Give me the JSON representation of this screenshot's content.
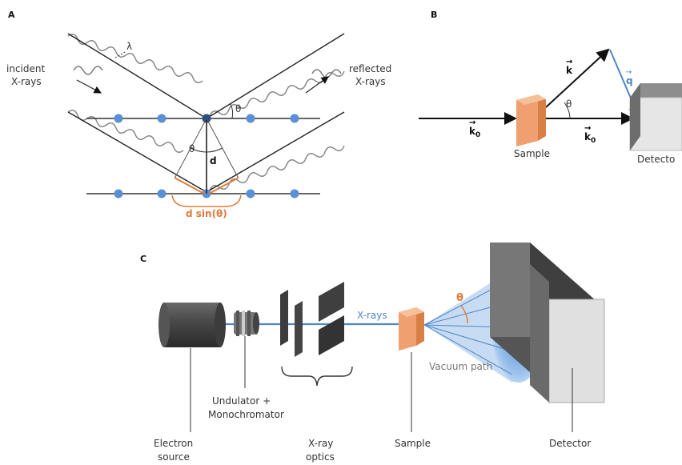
{
  "panels": {
    "a": {
      "panel_label": "A",
      "incident_label_line1": "incident",
      "incident_label_line2": "X-rays",
      "reflected_label_line1": "reflected",
      "reflected_label_line2": "X-rays",
      "wavelength_symbol": "λ",
      "theta_symbol": "θ",
      "spacing_symbol": "d",
      "path_difference": "d sin(θ)"
    },
    "b": {
      "panel_label": "B",
      "k_label": "k",
      "q_label": "q",
      "k0_label": "k",
      "k0_subscript": "0",
      "theta_symbol": "θ",
      "sample_label": "Sample",
      "detector_label": "Detecto"
    },
    "c": {
      "panel_label": "C",
      "theta_symbol": "θ",
      "xrays_label": "X-rays",
      "vacuum_label": "Vacuum path",
      "undulator_line1": "Undulator +",
      "undulator_line2": "Monochromator",
      "electron_line1": "Electron",
      "electron_line2": "source",
      "optics_line1": "X-ray",
      "optics_line2": "optics",
      "sample_label": "Sample",
      "detector_label": "Detector"
    }
  },
  "colors": {
    "atom_blue": "#5b8fd6",
    "beam_blue": "#4f86c6",
    "highlight_orange": "#e07b3c",
    "sample_orange": "#f0a070",
    "wave_grey": "#888888",
    "dark": "#222222"
  }
}
